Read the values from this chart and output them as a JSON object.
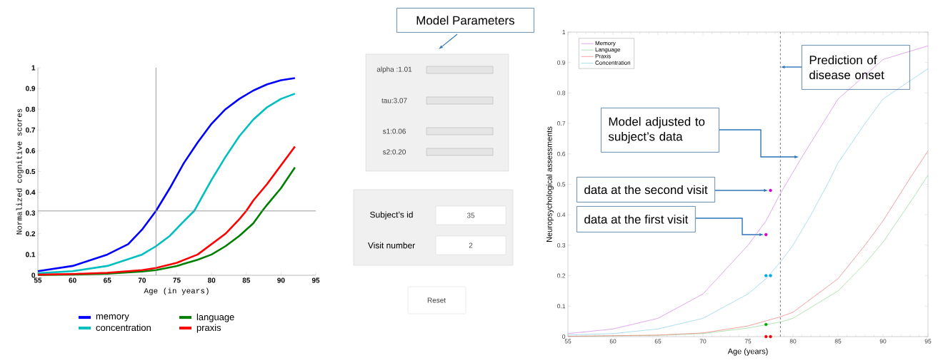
{
  "chart_data": [
    {
      "type": "line",
      "xlabel": "Age (in years)",
      "ylabel": "Normalized cognitive scores",
      "xlim": [
        55,
        95
      ],
      "ylim": [
        0,
        1
      ],
      "xticks": [
        55,
        60,
        65,
        70,
        75,
        80,
        85,
        90,
        95
      ],
      "yticks": [
        0,
        0.1,
        0.2,
        0.3,
        0.4,
        0.5,
        0.6,
        0.7,
        0.8,
        0.9,
        1
      ],
      "legend": "bottom",
      "series": [
        {
          "name": "memory",
          "color": "#0000ff",
          "x": [
            55,
            60,
            65,
            68,
            70,
            72,
            74,
            76,
            78,
            80,
            82,
            84,
            86,
            88,
            90,
            92
          ],
          "values": [
            0.02,
            0.045,
            0.1,
            0.15,
            0.22,
            0.31,
            0.42,
            0.54,
            0.64,
            0.73,
            0.8,
            0.85,
            0.89,
            0.92,
            0.94,
            0.95
          ]
        },
        {
          "name": "language",
          "color": "#007f00",
          "x": [
            55,
            60,
            65,
            70,
            72,
            75,
            78,
            80,
            82,
            84,
            86,
            87.3,
            88,
            90,
            92
          ],
          "values": [
            0.002,
            0.004,
            0.008,
            0.018,
            0.025,
            0.045,
            0.075,
            0.1,
            0.14,
            0.19,
            0.25,
            0.31,
            0.34,
            0.42,
            0.52
          ]
        },
        {
          "name": "concentration",
          "color": "#00bfbf",
          "x": [
            55,
            60,
            65,
            70,
            72,
            74,
            76,
            77.5,
            79,
            80,
            82,
            84,
            86,
            88,
            90,
            92
          ],
          "values": [
            0.01,
            0.02,
            0.045,
            0.1,
            0.14,
            0.19,
            0.26,
            0.31,
            0.4,
            0.46,
            0.57,
            0.67,
            0.75,
            0.81,
            0.85,
            0.875
          ]
        },
        {
          "name": "praxis",
          "color": "#ff0000",
          "x": [
            55,
            60,
            65,
            70,
            72,
            75,
            78,
            80,
            82,
            84,
            85,
            86,
            88,
            90,
            92
          ],
          "values": [
            0.003,
            0.006,
            0.012,
            0.025,
            0.035,
            0.06,
            0.1,
            0.15,
            0.2,
            0.27,
            0.31,
            0.36,
            0.44,
            0.53,
            0.62
          ]
        }
      ],
      "ref_lines": [
        {
          "axis": "x",
          "value": 72,
          "color": "#808080"
        },
        {
          "axis": "y",
          "value": 0.31,
          "color": "#808080"
        }
      ]
    },
    {
      "type": "other",
      "title": "Model Parameters",
      "annotations": [
        "alpha :1.01",
        "tau:3.07",
        "s1:0.06",
        "s2:0.20",
        "Subject’s id",
        "35",
        "Visit number",
        "2",
        "Reset"
      ]
    },
    {
      "type": "line",
      "xlabel": "Age (years)",
      "ylabel": "Neuropsychological assessments",
      "xlim": [
        55,
        95
      ],
      "ylim": [
        0,
        1
      ],
      "xticks": [
        55,
        60,
        65,
        70,
        75,
        80,
        85,
        90,
        95
      ],
      "yticks": [
        0,
        0.1,
        0.2,
        0.3,
        0.4,
        0.5,
        0.6,
        0.7,
        0.8,
        0.9,
        1
      ],
      "legend": "top left",
      "series": [
        {
          "name": "Memory",
          "color": "#d580e6",
          "x": [
            55,
            60,
            65,
            70,
            75,
            77,
            78.6,
            80,
            81,
            85,
            90,
            95
          ],
          "values": [
            0.01,
            0.025,
            0.06,
            0.14,
            0.3,
            0.38,
            0.47,
            0.54,
            0.59,
            0.78,
            0.91,
            0.955
          ]
        },
        {
          "name": "Language",
          "color": "#8fd68f",
          "x": [
            55,
            65,
            70,
            75,
            78.6,
            80,
            85,
            88,
            90,
            93,
            95
          ],
          "values": [
            0.001,
            0.004,
            0.01,
            0.028,
            0.048,
            0.06,
            0.15,
            0.24,
            0.31,
            0.44,
            0.53
          ]
        },
        {
          "name": "Praxis",
          "color": "#ee7777",
          "x": [
            55,
            65,
            70,
            75,
            78.6,
            80,
            85,
            88,
            90,
            93,
            95
          ],
          "values": [
            0.001,
            0.005,
            0.012,
            0.035,
            0.065,
            0.08,
            0.19,
            0.3,
            0.38,
            0.52,
            0.61
          ]
        },
        {
          "name": "Concentration",
          "color": "#88d0e8",
          "x": [
            55,
            60,
            65,
            70,
            75,
            77,
            78.6,
            80,
            82,
            84,
            85,
            88,
            90,
            95
          ],
          "values": [
            0.005,
            0.01,
            0.025,
            0.06,
            0.14,
            0.19,
            0.245,
            0.3,
            0.4,
            0.51,
            0.57,
            0.7,
            0.78,
            0.88
          ]
        },
        {
          "type": "scatter",
          "color": "#cc00cc",
          "x": [
            77,
            77.5
          ],
          "values": [
            0.335,
            0.48
          ]
        },
        {
          "type": "scatter",
          "color": "#00aadd",
          "x": [
            77,
            77.5
          ],
          "values": [
            0.2,
            0.2
          ]
        },
        {
          "type": "scatter",
          "color": "#00aa00",
          "x": [
            77
          ],
          "values": [
            0.04
          ]
        },
        {
          "type": "scatter",
          "color": "#ee0000",
          "x": [
            77,
            77.5
          ],
          "values": [
            0,
            0
          ]
        }
      ],
      "ref_lines": [
        {
          "axis": "x",
          "value": 78.6,
          "color": "#555555",
          "line_style": "dashed"
        }
      ],
      "annotations": [
        {
          "text": "Prediction of disease onset",
          "x": 78.6,
          "y": 0.89
        },
        {
          "text": "Model adjusted to subject’s data",
          "x": 80.9,
          "y": 0.59
        },
        {
          "text": "data at the second visit",
          "x": 77.5,
          "y": 0.48
        },
        {
          "text": "data at the first visit",
          "x": 77,
          "y": 0.335
        }
      ]
    }
  ]
}
